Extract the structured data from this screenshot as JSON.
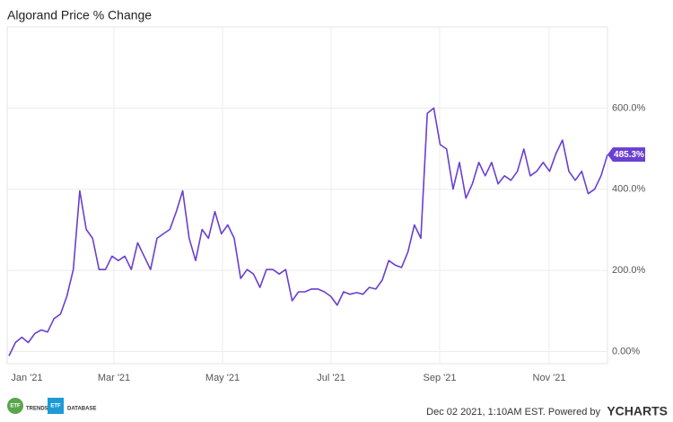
{
  "chart_data": {
    "type": "line",
    "title": "Algorand Price % Change",
    "xtick_labels": [
      "Jan '21",
      "Mar '21",
      "May '21",
      "Jul '21",
      "Sep '21",
      "Nov '21"
    ],
    "series": [
      {
        "name": "Algorand Price % Change",
        "color": "#6a3fd1",
        "values": [
          -11,
          22,
          35,
          22,
          44,
          53,
          48,
          81,
          92,
          136,
          202,
          396,
          301,
          279,
          202,
          202,
          235,
          224,
          235,
          202,
          268,
          235,
          202,
          279,
          290,
          301,
          345,
          396,
          279,
          224,
          301,
          279,
          345,
          290,
          312,
          279,
          180,
          202,
          191,
          158,
          202,
          202,
          191,
          202,
          125,
          147,
          147,
          154,
          154,
          147,
          136,
          114,
          147,
          141,
          145,
          141,
          158,
          154,
          176,
          224,
          213,
          207,
          246,
          312,
          279,
          587,
          600,
          510,
          499,
          400,
          466,
          378,
          413,
          466,
          433,
          466,
          413,
          433,
          422,
          444,
          499,
          433,
          444,
          466,
          444,
          488,
          521,
          444,
          422,
          444,
          389,
          400,
          433,
          485.3
        ]
      }
    ],
    "last_label": "485.3%",
    "ylim": [
      -30,
      800
    ],
    "yticks": [
      {
        "value": 0,
        "label": "0.00%"
      },
      {
        "value": 200,
        "label": "200.0%"
      },
      {
        "value": 400,
        "label": "400.0%"
      },
      {
        "value": 600,
        "label": "600.0%"
      }
    ],
    "grid": true,
    "footer": {
      "timestamp": "Dec 02 2021, 1:10AM EST. Powered by",
      "brand": "YCHARTS",
      "logo1": {
        "badge": "ETF",
        "text": "TRENDS"
      },
      "logo2": {
        "badge": "ETF",
        "text": "DATABASE"
      }
    }
  }
}
